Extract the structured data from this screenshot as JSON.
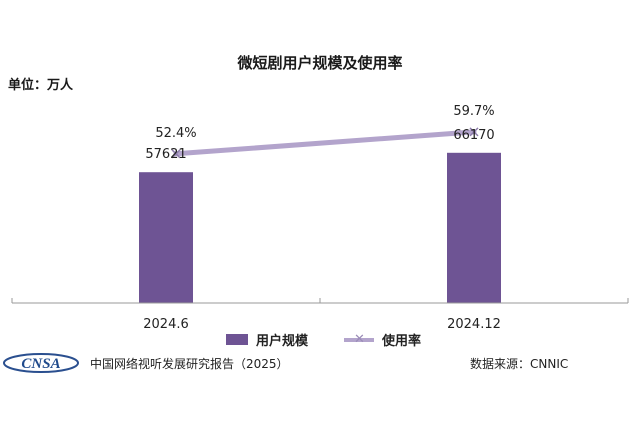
{
  "chart_data": {
    "type": "bar",
    "title": "微短剧用户规模及使用率",
    "unit_label": "单位：万人",
    "categories": [
      "2024.6",
      "2024.12"
    ],
    "series": [
      {
        "name": "用户规模",
        "type": "bar",
        "values": [
          57621,
          66170
        ],
        "labels": [
          "57621",
          "66170"
        ],
        "color": "#6e5494"
      },
      {
        "name": "使用率",
        "type": "line",
        "values": [
          52.4,
          59.7
        ],
        "labels": [
          "52.4%",
          "59.7%"
        ],
        "color": "#b3a4cc"
      }
    ],
    "bar_ylim": [
      0,
      100000
    ],
    "rate_ylim": [
      0,
      80
    ],
    "grid": false,
    "legend_position": "bottom"
  },
  "footer": {
    "logo_text": "CNSA",
    "report_title": "中国网络视听发展研究报告（2025）",
    "source": "数据来源：CNNIC"
  }
}
